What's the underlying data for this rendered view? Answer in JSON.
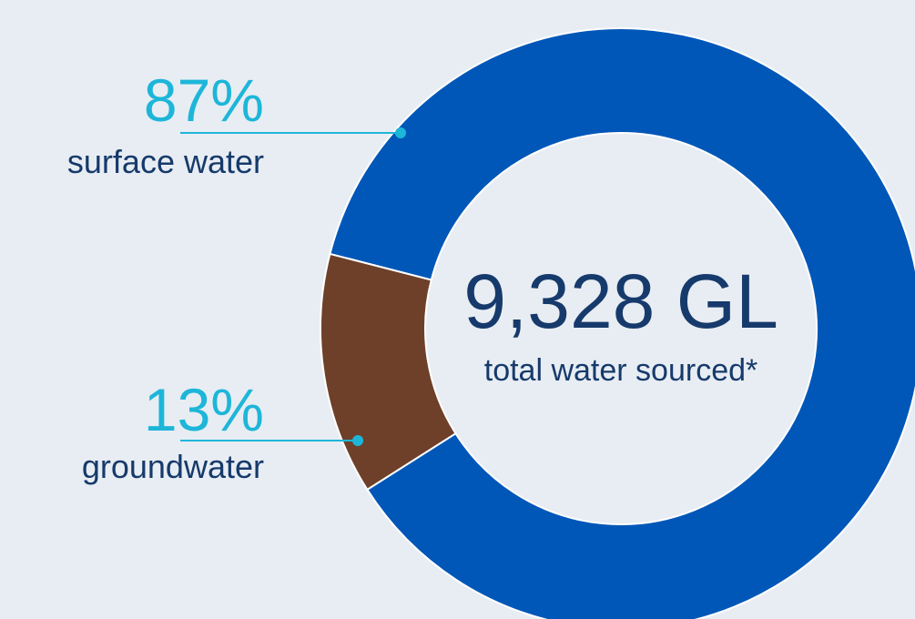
{
  "chart_data": {
    "type": "pie",
    "variant": "donut",
    "series": [
      {
        "name": "surface water",
        "value": 87,
        "label": "87%",
        "color": "#0057b8"
      },
      {
        "name": "groundwater",
        "value": 13,
        "label": "13%",
        "color": "#6e4029"
      }
    ],
    "center_value": "9,328 GL",
    "center_caption": "total water sourced*",
    "colors": {
      "background": "#e8edf3",
      "percent_text": "#1db6d9",
      "label_text": "#163a6b",
      "leader_line": "#1db6d9"
    }
  }
}
